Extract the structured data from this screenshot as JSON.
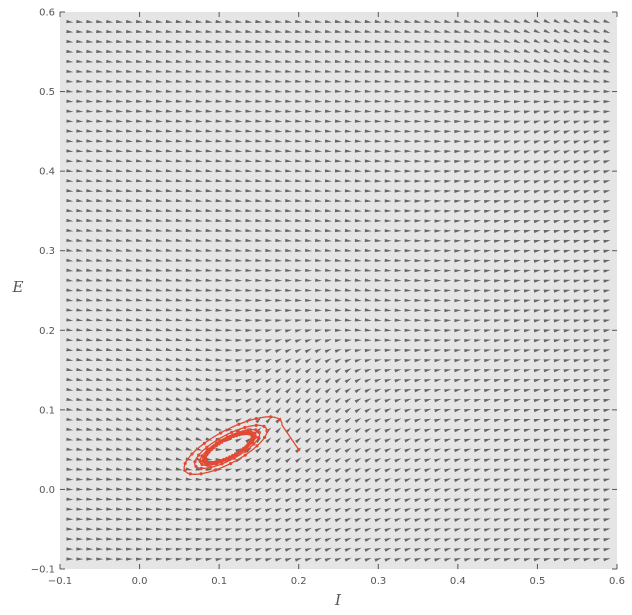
{
  "chart_data": {
    "type": "line",
    "title": "",
    "xlabel": "I",
    "ylabel": "E",
    "xlim": [
      -0.1,
      0.6
    ],
    "ylim": [
      -0.1,
      0.6
    ],
    "xticks": [
      "−0.1",
      "0.0",
      "0.1",
      "0.2",
      "0.3",
      "0.4",
      "0.5",
      "0.6"
    ],
    "yticks": [
      "−0.1",
      "0.0",
      "0.1",
      "0.2",
      "0.3",
      "0.4",
      "0.5",
      "0.6"
    ],
    "grid": false,
    "background_color": "#e5e5e5",
    "quiver_color": "#666666",
    "quiver_grid_step": 0.0125,
    "trajectory_color": "#e24a33",
    "trajectory": {
      "start": [
        0.2,
        0.05
      ],
      "turns": 9,
      "center": [
        0.112,
        0.052
      ],
      "final_semi_axis": 0.033,
      "initial_semi_axis": 0.075,
      "tilt_degrees": 28
    },
    "vector_field_features": [
      {
        "kind": "focus",
        "at": [
          0.115,
          0.05
        ]
      },
      {
        "kind": "saddle",
        "at": [
          0.28,
          0.16
        ]
      },
      {
        "kind": "node",
        "at": [
          0.5,
          0.5
        ]
      }
    ]
  }
}
